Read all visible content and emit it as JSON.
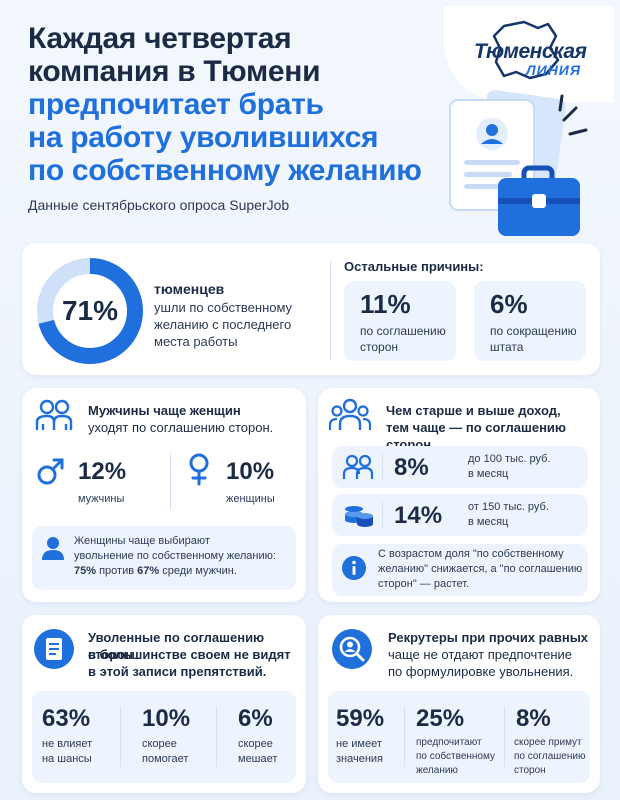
{
  "header": {
    "title_lines": [
      "Каждая четвертая",
      "компания в Тюмени"
    ],
    "title_accent_lines": [
      "предпочитает брать",
      "на работу уволившихся",
      "по собственному желанию"
    ],
    "subtitle": "Данные сентябрьского опроса SuperJob"
  },
  "logo": {
    "line1": "Тюменская",
    "line2": "ЛИНИЯ"
  },
  "summary": {
    "value": "71%",
    "fraction": 0.71,
    "heading": "тюменцев",
    "text": "ушли по собственному желанию с последнего места работы",
    "others_title": "Остальные причины:",
    "reasons": [
      {
        "value": "11%",
        "label": "по соглашению сторон"
      },
      {
        "value": "6%",
        "label": "по сокращению штата"
      }
    ]
  },
  "gender": {
    "heading_bold": "Мужчины",
    "heading_rest": " чаще женщин",
    "heading_line2": "уходят по соглашению сторон.",
    "male": {
      "value": "12%",
      "label": "мужчины"
    },
    "female": {
      "value": "10%",
      "label": "женщины"
    },
    "note_line1": "Женщины чаще выбирают",
    "note_line2": "увольнение по собственному желанию:",
    "note_bold1": "75%",
    "note_mid": " против ",
    "note_bold2": "67%",
    "note_end": " среди мужчин."
  },
  "age": {
    "heading_line1": "Чем старше и выше доход,",
    "heading_line2": "тем чаще — по соглашению сторон.",
    "rows": [
      {
        "value": "8%",
        "label_line1": "до 100 тыс. руб.",
        "label_line2": "в месяц"
      },
      {
        "value": "14%",
        "label_line1": "от 150 тыс. руб.",
        "label_line2": "в месяц"
      }
    ],
    "note_line1": "С возрастом доля \"по собственному",
    "note_line2": "желанию\" снижается, а \"по соглашению",
    "note_line3": "сторон\" — растет."
  },
  "obstacles": {
    "heading_line1": "Уволенные по соглашению сторон",
    "heading_line2": "в большинстве своем не видят",
    "heading_line3": "в этой записи препятствий.",
    "stats": [
      {
        "value": "63%",
        "line1": "не влияет",
        "line2": "на шансы"
      },
      {
        "value": "10%",
        "line1": "скорее",
        "line2": "помогает"
      },
      {
        "value": "6%",
        "line1": "скорее",
        "line2": "мешает"
      }
    ]
  },
  "recruiters": {
    "heading_line1": "Рекрутеры при прочих равных",
    "heading_line2": "чаще не отдают предпочтение",
    "heading_line3": "по формулировке увольнения.",
    "stats": [
      {
        "value": "59%",
        "line1": "не имеет",
        "line2": "значения",
        "line3": ""
      },
      {
        "value": "25%",
        "line1": "предпочитают",
        "line2": "по собственному",
        "line3": "желанию"
      },
      {
        "value": "8%",
        "line1": "скорее примут",
        "line2": "по соглашению",
        "line3": "сторон"
      }
    ]
  },
  "colors": {
    "accent": "#1f6fdc",
    "dark": "#1c2b45",
    "panel": "#eef4fd"
  }
}
